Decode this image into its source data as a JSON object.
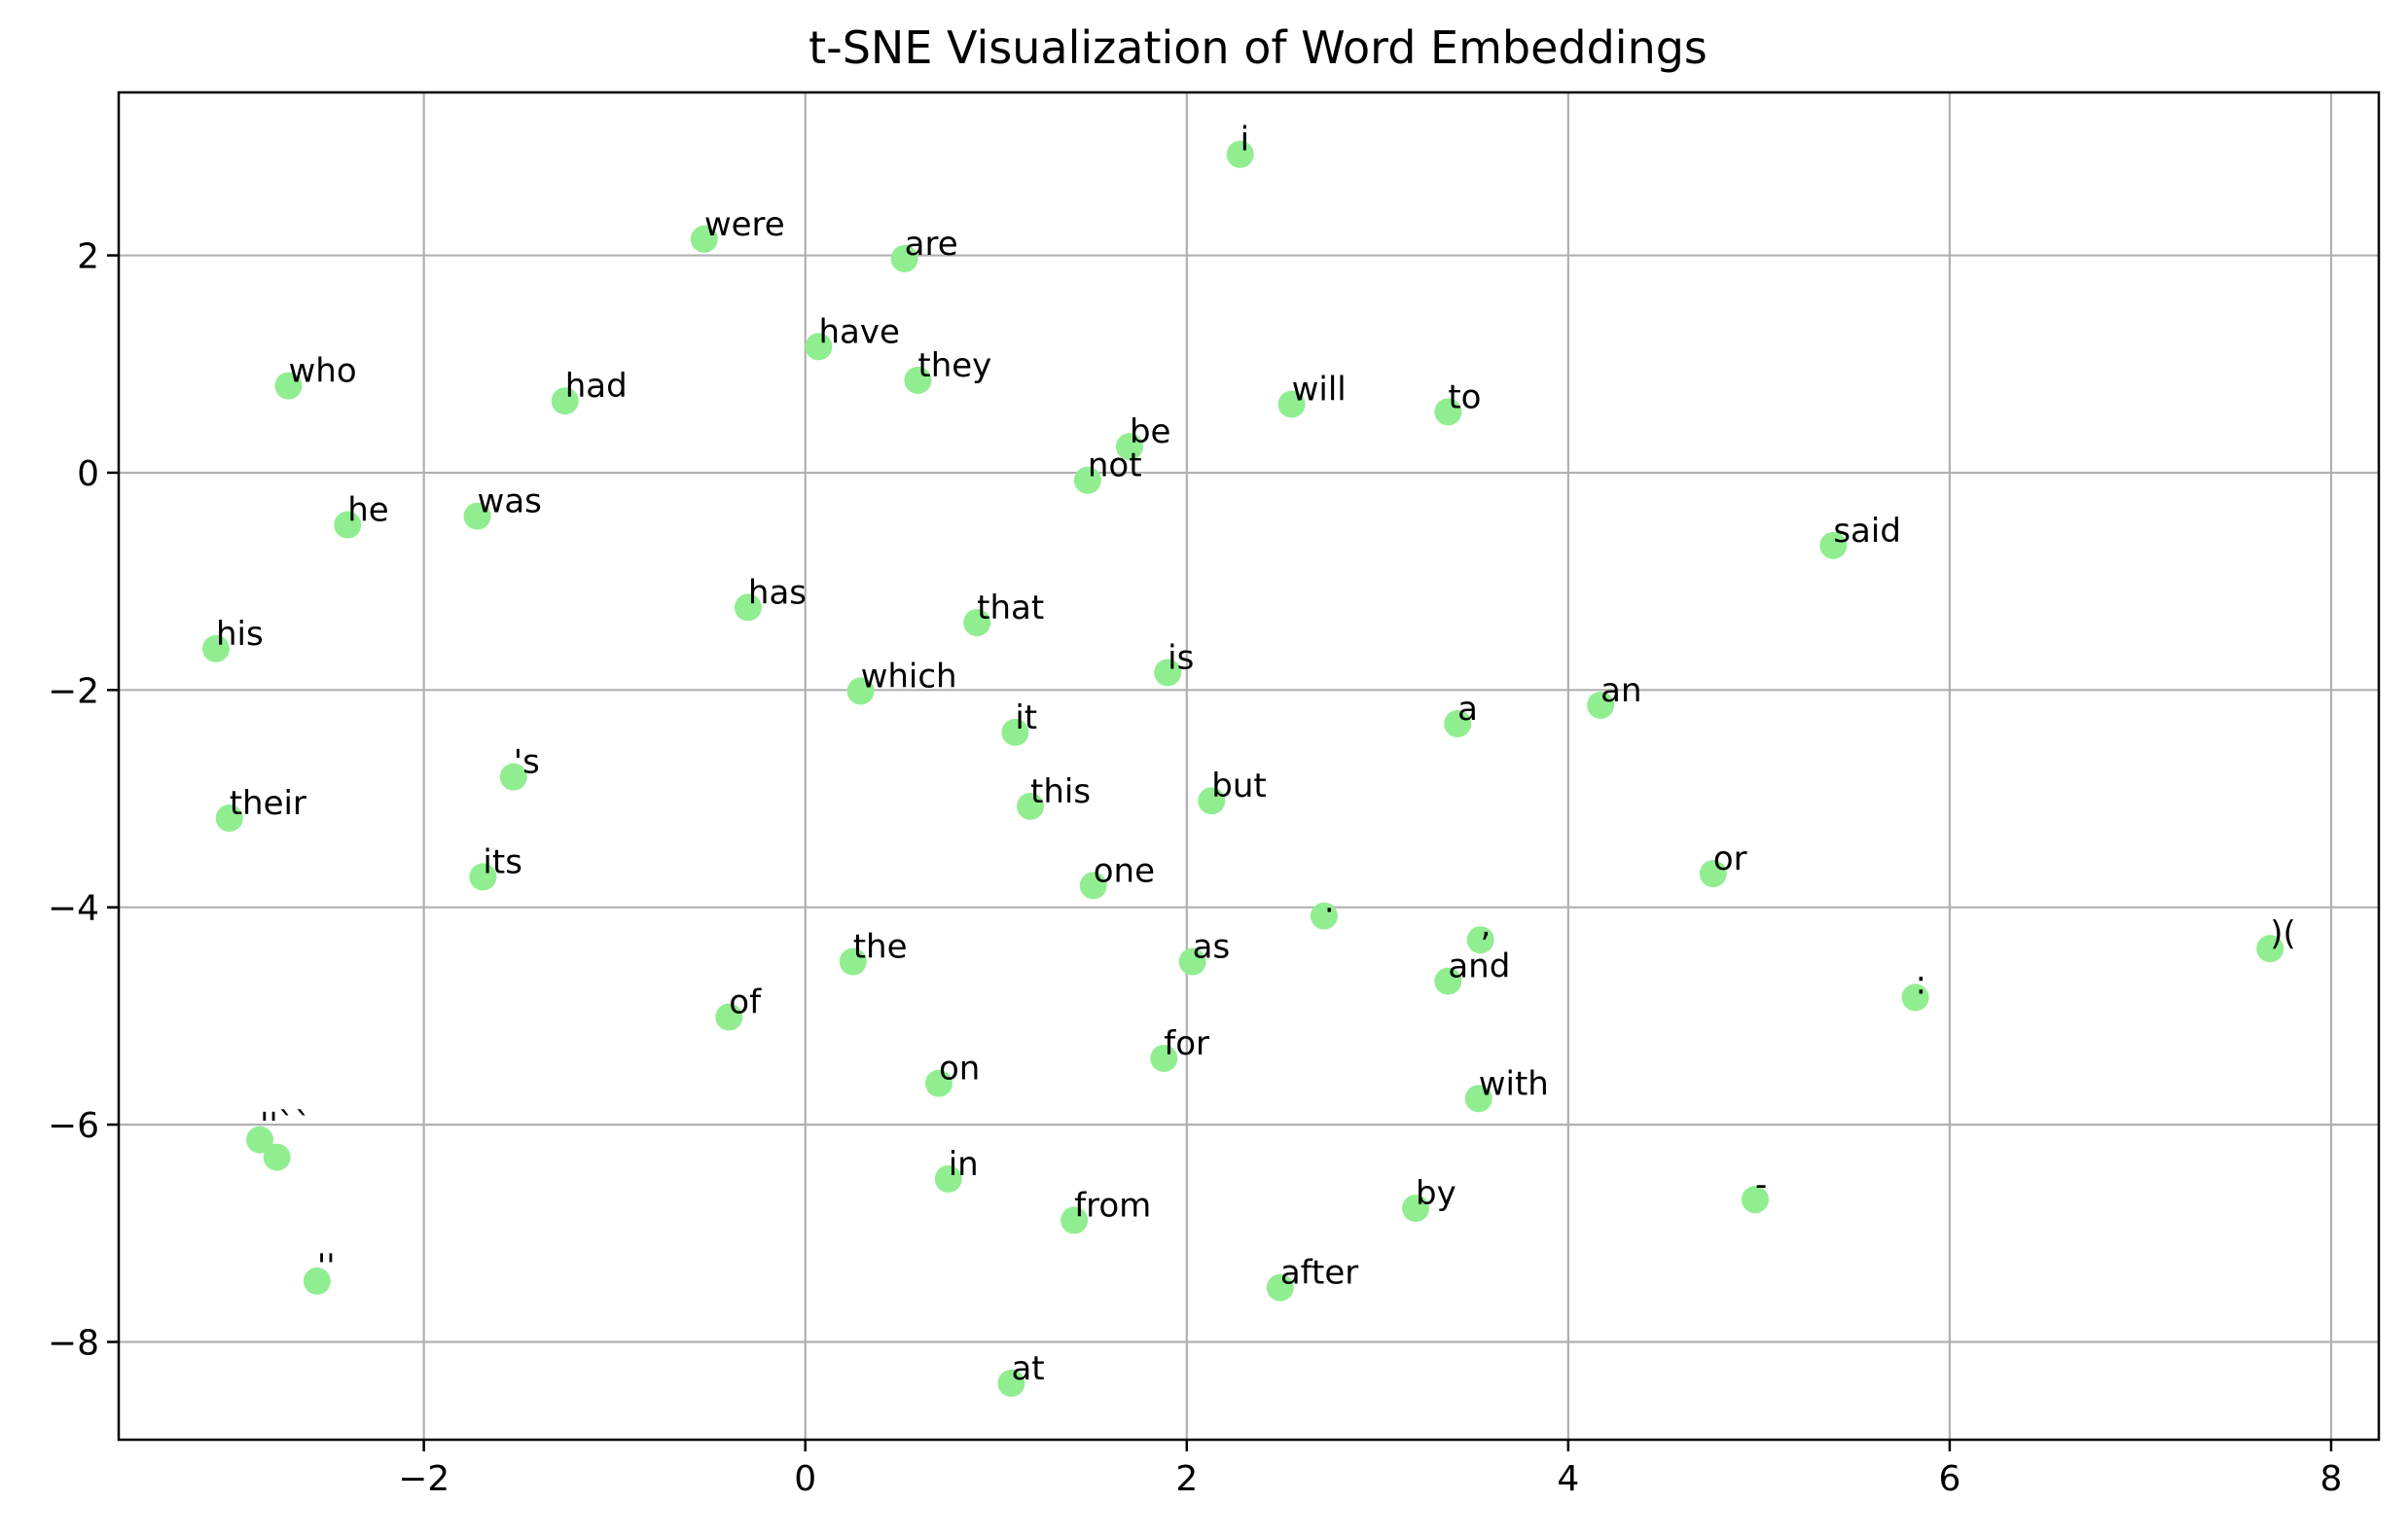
{
  "chart_data": {
    "type": "scatter",
    "title": "t-SNE Visualization of Word Embeddings",
    "xlabel": "",
    "ylabel": "",
    "xlim": [
      -3.6,
      8.25
    ],
    "ylim": [
      -8.9,
      3.5
    ],
    "xticks": [
      -2,
      0,
      2,
      4,
      6,
      8
    ],
    "yticks": [
      2,
      0,
      -2,
      -4,
      -6,
      -8
    ],
    "x_tick_labels": [
      "−2",
      "0",
      "2",
      "4",
      "6",
      "8"
    ],
    "y_tick_labels": [
      "2",
      "0",
      "−2",
      "−4",
      "−6",
      "−8"
    ],
    "grid": true,
    "marker_color": "#90ee90",
    "points": [
      {
        "label": "i",
        "x": 2.28,
        "y": 2.93
      },
      {
        "label": "were",
        "x": -0.53,
        "y": 2.15
      },
      {
        "label": "are",
        "x": 0.52,
        "y": 1.97
      },
      {
        "label": "have",
        "x": 0.07,
        "y": 1.16
      },
      {
        "label": "they",
        "x": 0.59,
        "y": 0.85
      },
      {
        "label": "who",
        "x": -2.71,
        "y": 0.8
      },
      {
        "label": "had",
        "x": -1.26,
        "y": 0.66
      },
      {
        "label": "will",
        "x": 2.55,
        "y": 0.63
      },
      {
        "label": "to",
        "x": 3.37,
        "y": 0.56
      },
      {
        "label": "be",
        "x": 1.7,
        "y": 0.24
      },
      {
        "label": "not",
        "x": 1.48,
        "y": -0.07
      },
      {
        "label": "was",
        "x": -1.72,
        "y": -0.4
      },
      {
        "label": "he",
        "x": -2.4,
        "y": -0.48
      },
      {
        "label": "said",
        "x": 5.39,
        "y": -0.67
      },
      {
        "label": "has",
        "x": -0.3,
        "y": -1.24
      },
      {
        "label": "that",
        "x": 0.9,
        "y": -1.38
      },
      {
        "label": "his",
        "x": -3.09,
        "y": -1.62
      },
      {
        "label": "is",
        "x": 1.9,
        "y": -1.84
      },
      {
        "label": "which",
        "x": 0.29,
        "y": -2.01
      },
      {
        "label": "an",
        "x": 4.17,
        "y": -2.14
      },
      {
        "label": "a",
        "x": 3.42,
        "y": -2.31
      },
      {
        "label": "it",
        "x": 1.1,
        "y": -2.39
      },
      {
        "label": "'s",
        "x": -1.53,
        "y": -2.8
      },
      {
        "label": "but",
        "x": 2.13,
        "y": -3.02
      },
      {
        "label": "this",
        "x": 1.18,
        "y": -3.07
      },
      {
        "label": "their",
        "x": -3.02,
        "y": -3.18
      },
      {
        "label": "or",
        "x": 4.76,
        "y": -3.69
      },
      {
        "label": "its",
        "x": -1.69,
        "y": -3.72
      },
      {
        "label": "one",
        "x": 1.51,
        "y": -3.8
      },
      {
        "label": ".",
        "x": 2.72,
        "y": -4.08
      },
      {
        "label": ",",
        "x": 3.54,
        "y": -4.3
      },
      {
        "label": ")(",
        "x": 7.68,
        "y": -4.38
      },
      {
        "label": "as",
        "x": 2.03,
        "y": -4.5
      },
      {
        "label": "the",
        "x": 0.25,
        "y": -4.5
      },
      {
        "label": "and",
        "x": 3.37,
        "y": -4.68
      },
      {
        "label": ":",
        "x": 5.82,
        "y": -4.83
      },
      {
        "label": "of",
        "x": -0.4,
        "y": -5.01
      },
      {
        "label": "for",
        "x": 1.88,
        "y": -5.39
      },
      {
        "label": "on",
        "x": 0.7,
        "y": -5.62
      },
      {
        "label": "with",
        "x": 3.53,
        "y": -5.76
      },
      {
        "label": "''``",
        "x": -2.86,
        "y": -6.14
      },
      {
        "label": "",
        "x": -2.77,
        "y": -6.3
      },
      {
        "label": "in",
        "x": 0.75,
        "y": -6.5
      },
      {
        "label": "-",
        "x": 4.98,
        "y": -6.69
      },
      {
        "label": "by",
        "x": 3.2,
        "y": -6.77
      },
      {
        "label": "from",
        "x": 1.41,
        "y": -6.88
      },
      {
        "label": "''",
        "x": -2.56,
        "y": -7.44
      },
      {
        "label": "after",
        "x": 2.49,
        "y": -7.5
      },
      {
        "label": "at",
        "x": 1.08,
        "y": -8.38
      }
    ]
  }
}
